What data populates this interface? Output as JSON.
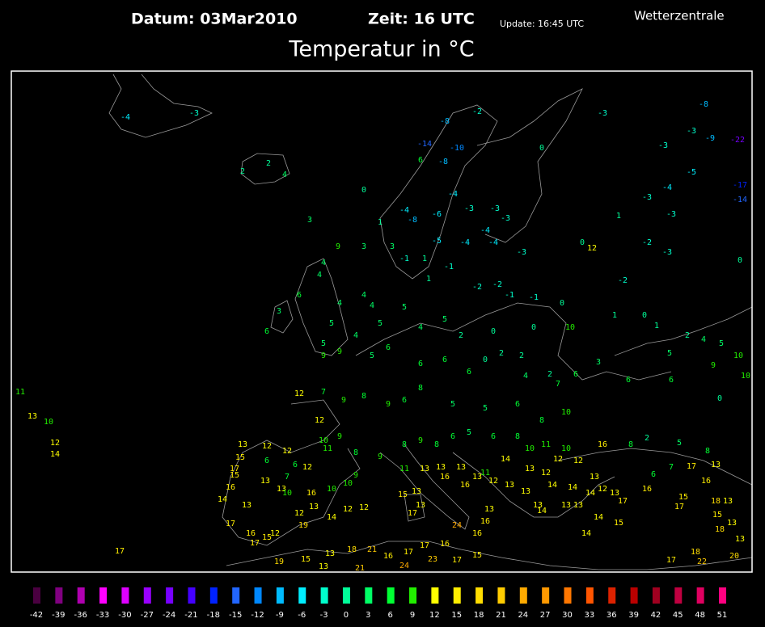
{
  "header": {
    "date": "Datum: 03Mar2010",
    "time": "Zeit: 16 UTC",
    "update": "Update: 16:45 UTC",
    "source": "Wetterzentrale",
    "title": "Temperatur in °C"
  },
  "map": {
    "stations": [
      -4,
      -3,
      -2,
      -3,
      -8,
      -3,
      -9,
      -22,
      -8,
      -14,
      -10,
      -8,
      6,
      2,
      2,
      4,
      0,
      -3,
      -5,
      -4,
      -17,
      -14,
      -3,
      -3,
      1,
      0,
      -4,
      -8,
      1,
      -6,
      -4,
      -3,
      -3,
      -3,
      -4,
      3,
      9,
      3,
      3,
      -5,
      -4,
      -4,
      -3,
      0,
      12,
      -2,
      -3,
      -2,
      0,
      4,
      4,
      -1,
      1,
      -1,
      1,
      -2,
      -2,
      -1,
      -1,
      0,
      4,
      4,
      6,
      3,
      6,
      4,
      5,
      5,
      4,
      5,
      5,
      4,
      5,
      2,
      0,
      0,
      10,
      1,
      0,
      1,
      2,
      4,
      5,
      5,
      10,
      9,
      10,
      3,
      6,
      6,
      0,
      9,
      9,
      5,
      6,
      6,
      6,
      6,
      0,
      2,
      2,
      4,
      2,
      7,
      6,
      10,
      8,
      6,
      5,
      5,
      8,
      6,
      9,
      8,
      9,
      7,
      12,
      11,
      13,
      10,
      12,
      14,
      12,
      10,
      11,
      9,
      8,
      9,
      8,
      9,
      8,
      6,
      5,
      6,
      8,
      10,
      11,
      10,
      16,
      8,
      2,
      5,
      6,
      7,
      8,
      17,
      13,
      16,
      13,
      12,
      12,
      15,
      6,
      6,
      12,
      7,
      17,
      15,
      16,
      14,
      13,
      13,
      13,
      10,
      16,
      10,
      10,
      9,
      11,
      13,
      13,
      13,
      11,
      14,
      13,
      12,
      12,
      12,
      13,
      12,
      13,
      17,
      16,
      15,
      17,
      18,
      13,
      15,
      13,
      18,
      13,
      12,
      13,
      14,
      12,
      12,
      15,
      13,
      17,
      13,
      16,
      16,
      13,
      12,
      13,
      13,
      14,
      14,
      14,
      13,
      16,
      24,
      16,
      13,
      14,
      13,
      13,
      14,
      15,
      14,
      17,
      16,
      15,
      12,
      19,
      17,
      19,
      15,
      13,
      18,
      21,
      16,
      17,
      17,
      16,
      15,
      17,
      23,
      24,
      21,
      13,
      17,
      17,
      18,
      22,
      20
    ]
  },
  "legend": {
    "values": [
      -42,
      -39,
      -36,
      -33,
      -30,
      -27,
      -24,
      -21,
      -18,
      -15,
      -12,
      -9,
      -6,
      -3,
      0,
      3,
      6,
      9,
      12,
      15,
      18,
      21,
      24,
      27,
      30,
      33,
      36,
      39,
      42,
      45,
      48,
      51
    ],
    "colors": [
      "#4a0040",
      "#800080",
      "#b000b0",
      "#ff00ff",
      "#dd00ff",
      "#9900ff",
      "#7700ff",
      "#4400ff",
      "#0022ff",
      "#2266ff",
      "#0088ff",
      "#00bbff",
      "#00eeff",
      "#00ffcc",
      "#00ff99",
      "#00ff66",
      "#00ff33",
      "#22ee00",
      "#ffff00",
      "#ffee00",
      "#ffdd00",
      "#ffcc00",
      "#ffaa00",
      "#ff9900",
      "#ff7700",
      "#ff5500",
      "#dd2200",
      "#bb0000",
      "#a00020",
      "#c00040",
      "#e00060",
      "#ff0080"
    ]
  }
}
